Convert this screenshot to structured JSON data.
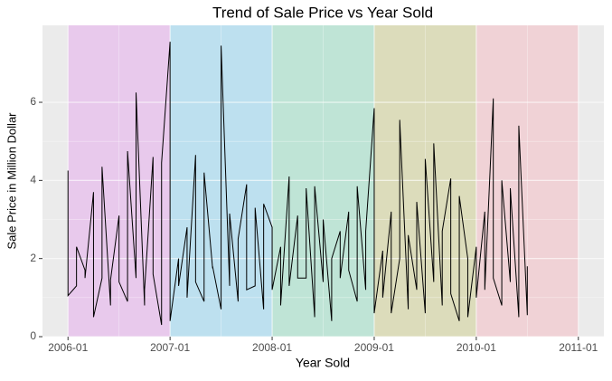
{
  "chart_data": {
    "type": "line",
    "title": "Trend of Sale Price vs Year Sold",
    "x_label": "Year Sold",
    "y_label": "Sale Price in Million Dollar",
    "x": [
      "2006-01",
      "2006-01",
      "2006-02",
      "2006-02",
      "2006-03",
      "2006-03",
      "2006-04",
      "2006-04",
      "2006-05",
      "2006-05",
      "2006-06",
      "2006-06",
      "2006-07",
      "2006-07",
      "2006-08",
      "2006-08",
      "2006-09",
      "2006-09",
      "2006-10",
      "2006-10",
      "2006-11",
      "2006-11",
      "2006-12",
      "2006-12",
      "2007-01",
      "2007-01",
      "2007-02",
      "2007-02",
      "2007-03",
      "2007-03",
      "2007-04",
      "2007-04",
      "2007-05",
      "2007-05",
      "2007-06",
      "2007-06",
      "2007-07",
      "2007-07",
      "2007-08",
      "2007-08",
      "2007-09",
      "2007-09",
      "2007-10",
      "2007-10",
      "2007-11",
      "2007-11",
      "2007-12",
      "2007-12",
      "2008-01",
      "2008-01",
      "2008-02",
      "2008-02",
      "2008-03",
      "2008-03",
      "2008-04",
      "2008-04",
      "2008-05",
      "2008-05",
      "2008-06",
      "2008-06",
      "2008-07",
      "2008-07",
      "2008-08",
      "2008-08",
      "2008-09",
      "2008-09",
      "2008-10",
      "2008-10",
      "2008-11",
      "2008-11",
      "2008-12",
      "2008-12",
      "2009-01",
      "2009-01",
      "2009-02",
      "2009-02",
      "2009-03",
      "2009-03",
      "2009-04",
      "2009-04",
      "2009-05",
      "2009-05",
      "2009-06",
      "2009-06",
      "2009-07",
      "2009-07",
      "2009-08",
      "2009-08",
      "2009-09",
      "2009-09",
      "2009-10",
      "2009-10",
      "2009-11",
      "2009-11",
      "2009-12",
      "2009-12",
      "2010-01",
      "2010-01",
      "2010-02",
      "2010-02",
      "2010-03",
      "2010-03",
      "2010-04",
      "2010-04",
      "2010-05",
      "2010-05",
      "2010-06",
      "2010-06",
      "2010-07",
      "2010-07"
    ],
    "series": [
      {
        "color": "#000000",
        "values": [
          4.25,
          1.05,
          1.3,
          2.3,
          1.7,
          1.5,
          3.7,
          0.5,
          1.5,
          4.35,
          0.8,
          1.45,
          3.1,
          1.4,
          0.9,
          4.75,
          1.5,
          6.25,
          0.8,
          1.2,
          4.6,
          1.6,
          0.3,
          4.45,
          7.55,
          0.4,
          2.0,
          1.3,
          2.8,
          1.0,
          4.65,
          1.4,
          0.9,
          4.2,
          1.75,
          1.8,
          0.7,
          7.45,
          1.3,
          3.15,
          0.9,
          2.5,
          3.9,
          1.2,
          1.3,
          3.3,
          0.7,
          3.4,
          2.8,
          1.2,
          2.3,
          0.8,
          4.1,
          1.3,
          3.1,
          1.5,
          1.5,
          3.8,
          0.5,
          3.85,
          1.4,
          3.0,
          0.4,
          2.0,
          2.7,
          1.5,
          3.2,
          1.7,
          0.9,
          3.85,
          1.2,
          2.7,
          5.85,
          0.6,
          2.2,
          1.0,
          3.2,
          0.6,
          2.0,
          5.55,
          0.7,
          2.6,
          1.2,
          3.45,
          0.6,
          4.55,
          1.4,
          4.95,
          0.8,
          2.7,
          4.05,
          1.1,
          0.4,
          3.6,
          2.0,
          0.5,
          2.3,
          1.0,
          3.2,
          1.2,
          6.1,
          1.5,
          0.8,
          4.0,
          1.4,
          3.8,
          0.5,
          5.4,
          0.55,
          1.8
        ]
      }
    ],
    "bands": [
      {
        "start": "2006-01",
        "end": "2007-01",
        "color": "#e8c9ec"
      },
      {
        "start": "2007-01",
        "end": "2008-01",
        "color": "#bde0ef"
      },
      {
        "start": "2008-01",
        "end": "2009-01",
        "color": "#bfe4d6"
      },
      {
        "start": "2009-01",
        "end": "2010-01",
        "color": "#dcdcbb"
      },
      {
        "start": "2010-01",
        "end": "2011-01",
        "color": "#f0d2d6"
      }
    ],
    "xlim": [
      "2005-10",
      "2011-04"
    ],
    "xticks": [
      "2006-01",
      "2007-01",
      "2008-01",
      "2009-01",
      "2010-01",
      "2011-01"
    ],
    "ylim": [
      0,
      7.97
    ],
    "yticks": [
      0,
      2,
      4,
      6
    ],
    "grid": true
  }
}
